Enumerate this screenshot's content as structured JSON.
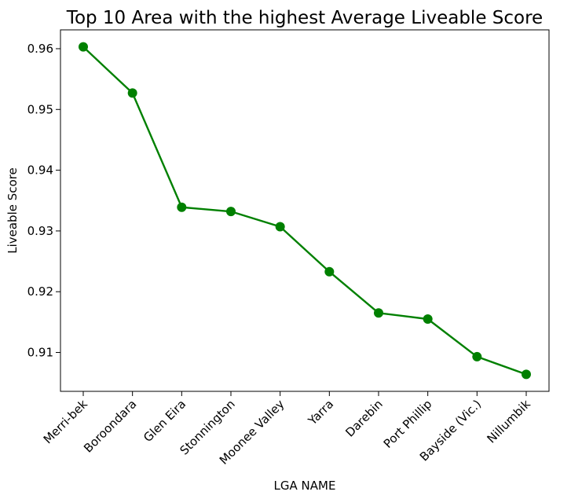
{
  "chart_data": {
    "type": "line",
    "title": "Top 10 Area with the highest Average Liveable Score",
    "xlabel": "LGA NAME",
    "ylabel": "Liveable Score",
    "categories": [
      "Merri-bek",
      "Boroondara",
      "Glen Eira",
      "Stonnington",
      "Moonee Valley",
      "Yarra",
      "Darebin",
      "Port Phillip",
      "Bayside (Vic.)",
      "Nillumbik"
    ],
    "series": [
      {
        "values": [
          0.9603,
          0.9527,
          0.9339,
          0.9332,
          0.9307,
          0.9233,
          0.9165,
          0.9155,
          0.9093,
          0.9064
        ]
      }
    ],
    "yticks": [
      "0.91",
      "0.92",
      "0.93",
      "0.94",
      "0.95",
      "0.96"
    ],
    "ylim": [
      0.9036,
      0.9631
    ],
    "grid": false,
    "colors": {
      "line": "#008000",
      "marker": "#008000"
    }
  }
}
